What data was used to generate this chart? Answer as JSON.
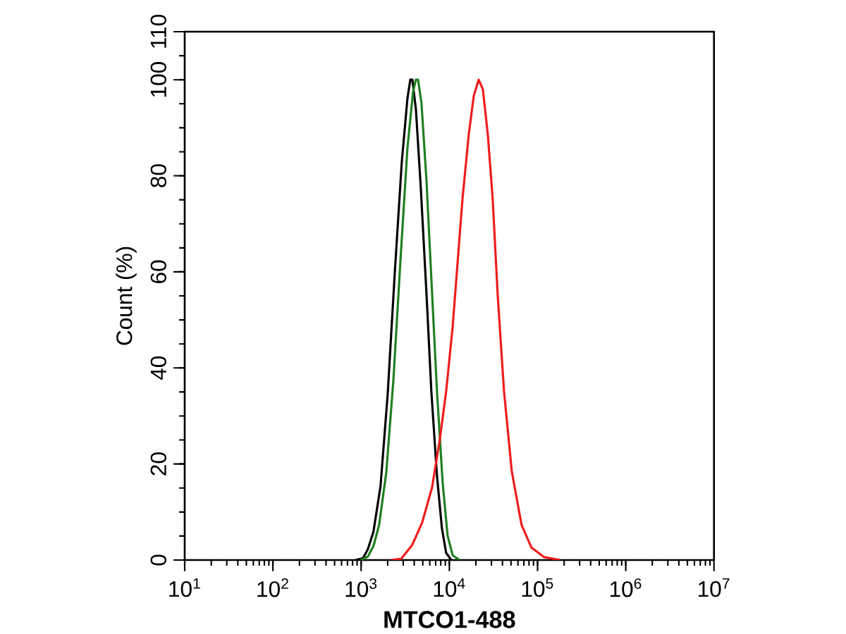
{
  "chart_data": {
    "type": "line",
    "xlabel": "MTCO1-488",
    "ylabel": "Count  (%)",
    "log": "x",
    "xlim": [
      10,
      10000000
    ],
    "ylim": [
      0,
      110
    ],
    "xticks": [
      {
        "value": 10,
        "label": "10$^{1}$"
      },
      {
        "value": 100,
        "label": "10$^{2}$"
      },
      {
        "value": 1000,
        "label": "10$^{3}$"
      },
      {
        "value": 10000,
        "label": "10$^{4}$"
      },
      {
        "value": 100000,
        "label": "10$^{5}$"
      },
      {
        "value": 1000000,
        "label": "10$^{6}$"
      },
      {
        "value": 10000000,
        "label": "10$^{7}$"
      }
    ],
    "yticks": [
      0,
      20,
      40,
      60,
      80,
      100,
      110
    ],
    "series": [
      {
        "color": "#000000",
        "x": [
          870,
          1050,
          1190,
          1380,
          1660,
          2000,
          2400,
          2890,
          3350,
          3610,
          3810,
          4180,
          4740,
          5500,
          6250,
          7240,
          8240,
          9200,
          10500
        ],
        "values": [
          0,
          0.4,
          2.2,
          5.9,
          15.4,
          34.5,
          59.4,
          82.9,
          96.1,
          100,
          100,
          93.8,
          77.7,
          55.7,
          35.2,
          17.6,
          6.6,
          1.5,
          0
        ]
      },
      {
        "color": "#1f7f1f",
        "x": [
          990,
          1190,
          1380,
          1600,
          1930,
          2320,
          2790,
          3350,
          3880,
          4180,
          4420,
          4830,
          5500,
          6250,
          7240,
          8400,
          9550,
          10900,
          13100
        ],
        "values": [
          0,
          0.7,
          2.9,
          7.3,
          18.3,
          37.4,
          62.3,
          85.8,
          97.5,
          100,
          100,
          95.2,
          79.2,
          58.7,
          35.2,
          16.1,
          5.1,
          1.0,
          0
        ]
      },
      {
        "color": "#ee1c1c",
        "x": [
          2190,
          2860,
          3810,
          4920,
          6370,
          7800,
          9200,
          10900,
          12400,
          14100,
          16600,
          18900,
          21500,
          24000,
          27300,
          31000,
          35300,
          41700,
          51000,
          65900,
          85300,
          119000,
          181000
        ],
        "values": [
          0,
          0.3,
          3.2,
          7.8,
          15.1,
          25.1,
          35.1,
          48.5,
          61.9,
          75.2,
          88.6,
          96.6,
          100,
          98.0,
          88.6,
          75.2,
          55.3,
          35.1,
          18.5,
          7.3,
          2.6,
          0.6,
          0
        ]
      }
    ]
  }
}
